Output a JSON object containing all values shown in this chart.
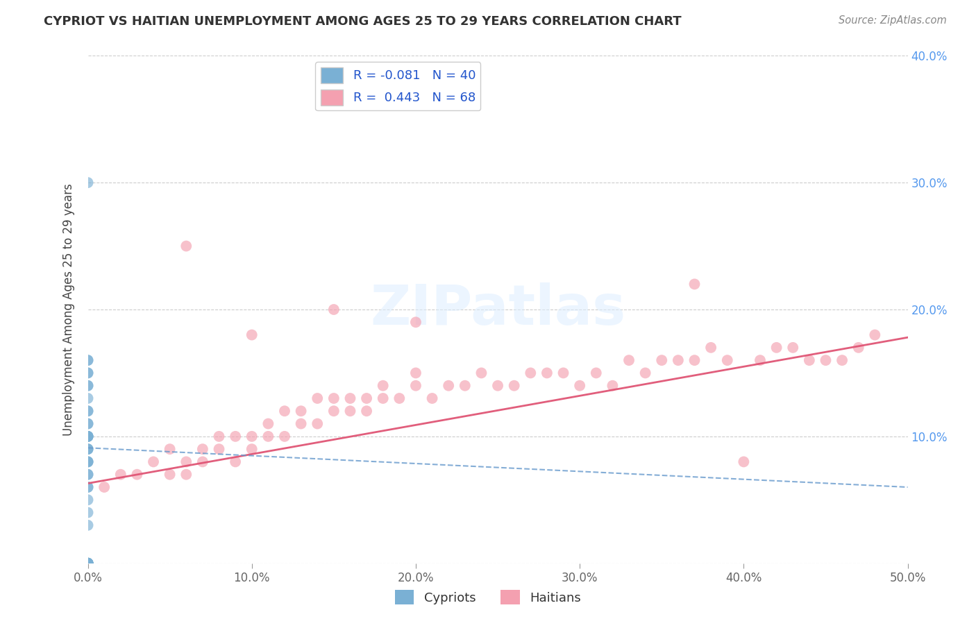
{
  "title": "CYPRIOT VS HAITIAN UNEMPLOYMENT AMONG AGES 25 TO 29 YEARS CORRELATION CHART",
  "source": "Source: ZipAtlas.com",
  "ylabel": "Unemployment Among Ages 25 to 29 years",
  "xlim": [
    0.0,
    0.5
  ],
  "ylim": [
    0.0,
    0.4
  ],
  "xticks": [
    0.0,
    0.1,
    0.2,
    0.3,
    0.4,
    0.5
  ],
  "yticks": [
    0.0,
    0.1,
    0.2,
    0.3,
    0.4
  ],
  "xtick_labels": [
    "0.0%",
    "10.0%",
    "20.0%",
    "30.0%",
    "40.0%",
    "50.0%"
  ],
  "ytick_labels_right": [
    "",
    "10.0%",
    "20.0%",
    "30.0%",
    "40.0%"
  ],
  "cypriot_color": "#7ab0d4",
  "haitian_color": "#f4a0b0",
  "cypriot_line_color": "#6699cc",
  "haitian_line_color": "#e05575",
  "cypriot_R": -0.081,
  "cypriot_N": 40,
  "haitian_R": 0.443,
  "haitian_N": 68,
  "background_color": "#ffffff",
  "grid_color": "#cccccc",
  "cypriot_x": [
    0.0,
    0.0,
    0.0,
    0.0,
    0.0,
    0.0,
    0.0,
    0.0,
    0.0,
    0.0,
    0.0,
    0.0,
    0.0,
    0.0,
    0.0,
    0.0,
    0.0,
    0.0,
    0.0,
    0.0,
    0.0,
    0.0,
    0.0,
    0.0,
    0.0,
    0.0,
    0.0,
    0.0,
    0.0,
    0.0,
    0.0,
    0.0,
    0.0,
    0.0,
    0.0,
    0.0,
    0.0,
    0.0,
    0.0,
    0.0
  ],
  "cypriot_y": [
    0.0,
    0.0,
    0.0,
    0.0,
    0.0,
    0.0,
    0.0,
    0.0,
    0.0,
    0.0,
    0.03,
    0.04,
    0.05,
    0.06,
    0.06,
    0.07,
    0.07,
    0.08,
    0.08,
    0.08,
    0.09,
    0.09,
    0.09,
    0.1,
    0.1,
    0.1,
    0.1,
    0.1,
    0.11,
    0.11,
    0.12,
    0.12,
    0.13,
    0.14,
    0.14,
    0.15,
    0.15,
    0.16,
    0.16,
    0.3
  ],
  "haitian_x": [
    0.01,
    0.02,
    0.03,
    0.04,
    0.05,
    0.05,
    0.06,
    0.06,
    0.07,
    0.07,
    0.08,
    0.08,
    0.09,
    0.09,
    0.1,
    0.1,
    0.11,
    0.11,
    0.12,
    0.12,
    0.13,
    0.13,
    0.14,
    0.14,
    0.15,
    0.15,
    0.16,
    0.16,
    0.17,
    0.17,
    0.18,
    0.18,
    0.19,
    0.2,
    0.2,
    0.21,
    0.22,
    0.23,
    0.24,
    0.25,
    0.26,
    0.27,
    0.28,
    0.29,
    0.3,
    0.31,
    0.32,
    0.33,
    0.34,
    0.35,
    0.36,
    0.37,
    0.38,
    0.39,
    0.4,
    0.41,
    0.42,
    0.43,
    0.44,
    0.45,
    0.46,
    0.47,
    0.48,
    0.06,
    0.1,
    0.15,
    0.2,
    0.37
  ],
  "haitian_y": [
    0.06,
    0.07,
    0.07,
    0.08,
    0.07,
    0.09,
    0.07,
    0.08,
    0.08,
    0.09,
    0.09,
    0.1,
    0.08,
    0.1,
    0.09,
    0.1,
    0.1,
    0.11,
    0.1,
    0.12,
    0.11,
    0.12,
    0.11,
    0.13,
    0.12,
    0.13,
    0.12,
    0.13,
    0.12,
    0.13,
    0.13,
    0.14,
    0.13,
    0.14,
    0.15,
    0.13,
    0.14,
    0.14,
    0.15,
    0.14,
    0.14,
    0.15,
    0.15,
    0.15,
    0.14,
    0.15,
    0.14,
    0.16,
    0.15,
    0.16,
    0.16,
    0.16,
    0.17,
    0.16,
    0.08,
    0.16,
    0.17,
    0.17,
    0.16,
    0.16,
    0.16,
    0.17,
    0.18,
    0.25,
    0.18,
    0.2,
    0.19,
    0.22
  ],
  "haitian_line_start_y": 0.063,
  "haitian_line_end_y": 0.178,
  "cypriot_line_start_y": 0.091,
  "cypriot_line_end_y": 0.06
}
